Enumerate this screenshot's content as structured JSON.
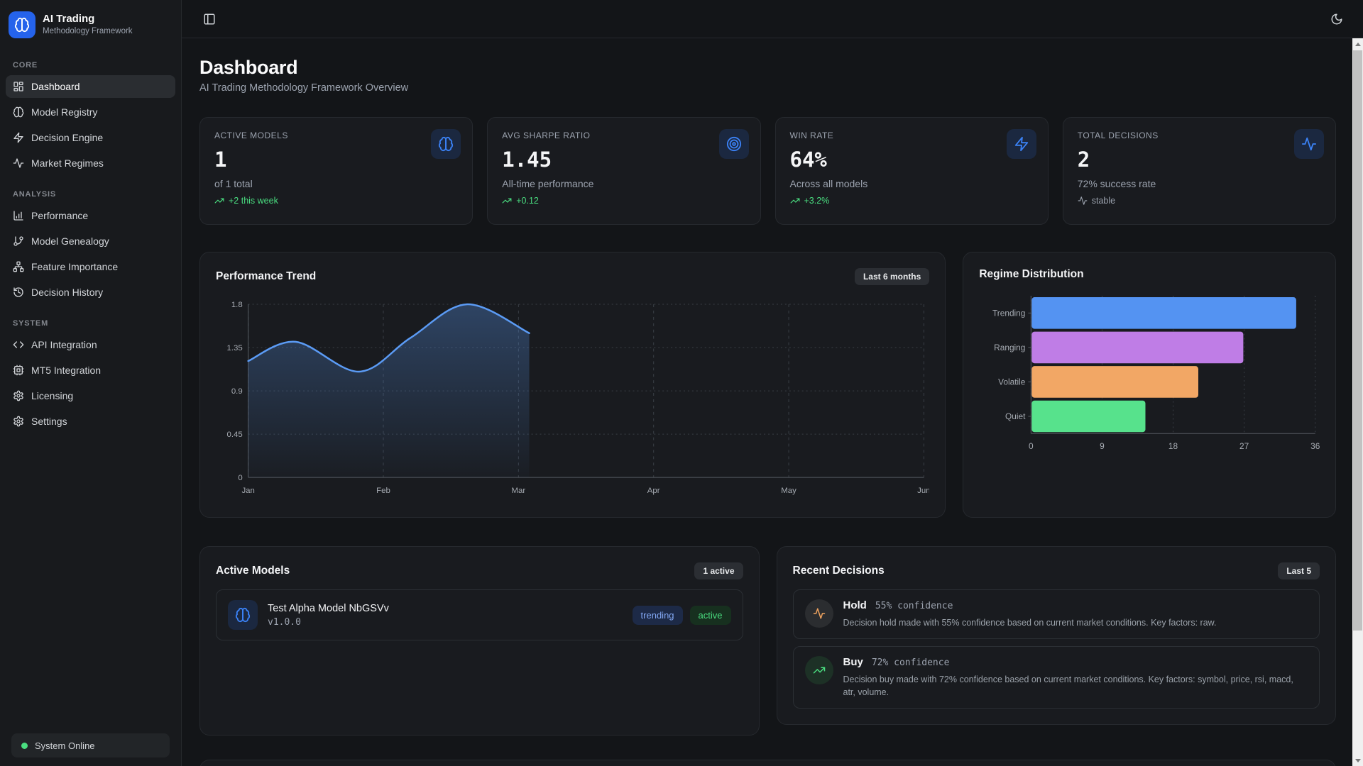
{
  "app": {
    "name": "AI Trading",
    "subtitle": "Methodology Framework",
    "status": "System Online"
  },
  "sidebar": {
    "sections": [
      {
        "label": "CORE",
        "items": [
          {
            "label": "Dashboard",
            "icon": "layout-dashboard",
            "active": true
          },
          {
            "label": "Model Registry",
            "icon": "brain",
            "active": false
          },
          {
            "label": "Decision Engine",
            "icon": "zap",
            "active": false
          },
          {
            "label": "Market Regimes",
            "icon": "activity",
            "active": false
          }
        ]
      },
      {
        "label": "ANALYSIS",
        "items": [
          {
            "label": "Performance",
            "icon": "chart-column",
            "active": false
          },
          {
            "label": "Model Genealogy",
            "icon": "git-branch",
            "active": false
          },
          {
            "label": "Feature Importance",
            "icon": "network",
            "active": false
          },
          {
            "label": "Decision History",
            "icon": "history",
            "active": false
          }
        ]
      },
      {
        "label": "SYSTEM",
        "items": [
          {
            "label": "API Integration",
            "icon": "code",
            "active": false
          },
          {
            "label": "MT5 Integration",
            "icon": "cpu",
            "active": false
          },
          {
            "label": "Licensing",
            "icon": "gear",
            "active": false
          },
          {
            "label": "Settings",
            "icon": "gear",
            "active": false
          }
        ]
      }
    ]
  },
  "page": {
    "title": "Dashboard",
    "subtitle": "AI Trading Methodology Framework Overview"
  },
  "stats": [
    {
      "label": "ACTIVE MODELS",
      "value": "1",
      "sub": "of 1 total",
      "delta": "+2 this week",
      "delta_style": "up",
      "delta_icon": "trending-up",
      "icon": "brain"
    },
    {
      "label": "AVG SHARPE RATIO",
      "value": "1.45",
      "sub": "All-time performance",
      "delta": "+0.12",
      "delta_style": "up",
      "delta_icon": "trending-up",
      "icon": "target"
    },
    {
      "label": "WIN RATE",
      "value": "64%",
      "sub": "Across all models",
      "delta": "+3.2%",
      "delta_style": "up",
      "delta_icon": "trending-up",
      "icon": "zap"
    },
    {
      "label": "TOTAL DECISIONS",
      "value": "2",
      "sub": "72% success rate",
      "delta": "stable",
      "delta_style": "neutral",
      "delta_icon": "activity",
      "icon": "activity"
    }
  ],
  "chart_data": [
    {
      "type": "area",
      "title": "Performance Trend",
      "badge": "Last 6 months",
      "x_tick_labels": [
        "Jan",
        "Feb",
        "Mar",
        "Apr",
        "May",
        "Jun"
      ],
      "y_ticks": [
        0,
        0.45,
        0.9,
        1.35,
        1.8
      ],
      "y_tick_labels": [
        "0",
        "0.45",
        "0.9",
        "1.35",
        "1.8"
      ],
      "ylim": [
        0,
        1.8
      ],
      "xlim_months": [
        0,
        5
      ],
      "points": [
        {
          "x": 0.0,
          "y": 1.21
        },
        {
          "x": 0.35,
          "y": 1.41
        },
        {
          "x": 0.82,
          "y": 1.1
        },
        {
          "x": 1.2,
          "y": 1.45
        },
        {
          "x": 1.62,
          "y": 1.8
        },
        {
          "x": 2.08,
          "y": 1.5
        }
      ],
      "line_color": "#5b9bf5",
      "fill_color": "#5b9bf5",
      "grid": true,
      "legend": false
    },
    {
      "type": "bar-horizontal",
      "title": "Regime Distribution",
      "categories": [
        "Trending",
        "Ranging",
        "Volatile",
        "Quiet"
      ],
      "values": [
        33.5,
        26.8,
        21.1,
        14.4
      ],
      "colors": [
        "#5493f2",
        "#bf7de6",
        "#f2a765",
        "#57e28c"
      ],
      "x_ticks": [
        0,
        9,
        18,
        27,
        36
      ],
      "xlim": [
        0,
        36
      ],
      "grid": true,
      "legend": false
    }
  ],
  "active_models": {
    "title": "Active Models",
    "badge": "1 active",
    "models": [
      {
        "name": "Test Alpha Model NbGSVv",
        "version": "v1.0.0",
        "badges": [
          {
            "label": "trending"
          },
          {
            "label": "active"
          }
        ]
      }
    ]
  },
  "recent_decisions": {
    "title": "Recent Decisions",
    "badge": "Last 5",
    "items": [
      {
        "action": "Hold",
        "confidence": "55% confidence",
        "icon": "activity",
        "color": "orange",
        "description": "Decision hold made with 55% confidence based on current market conditions. Key factors: raw."
      },
      {
        "action": "Buy",
        "confidence": "72% confidence",
        "icon": "trending-up",
        "color": "green",
        "description": "Decision buy made with 72% confidence based on current market conditions. Key factors: symbol, price, rsi, macd, atr, volume."
      }
    ]
  },
  "colors": {
    "accent_blue": "#3b82f6",
    "logo_blue": "#2563eb",
    "green": "#4ade80",
    "orange": "#f0a35f",
    "card_bg": "#191b1f",
    "sidebar_bg": "#181a1d",
    "page_bg": "#131518",
    "grid_line": "#3a3f46",
    "axis_line": "#555a61"
  }
}
